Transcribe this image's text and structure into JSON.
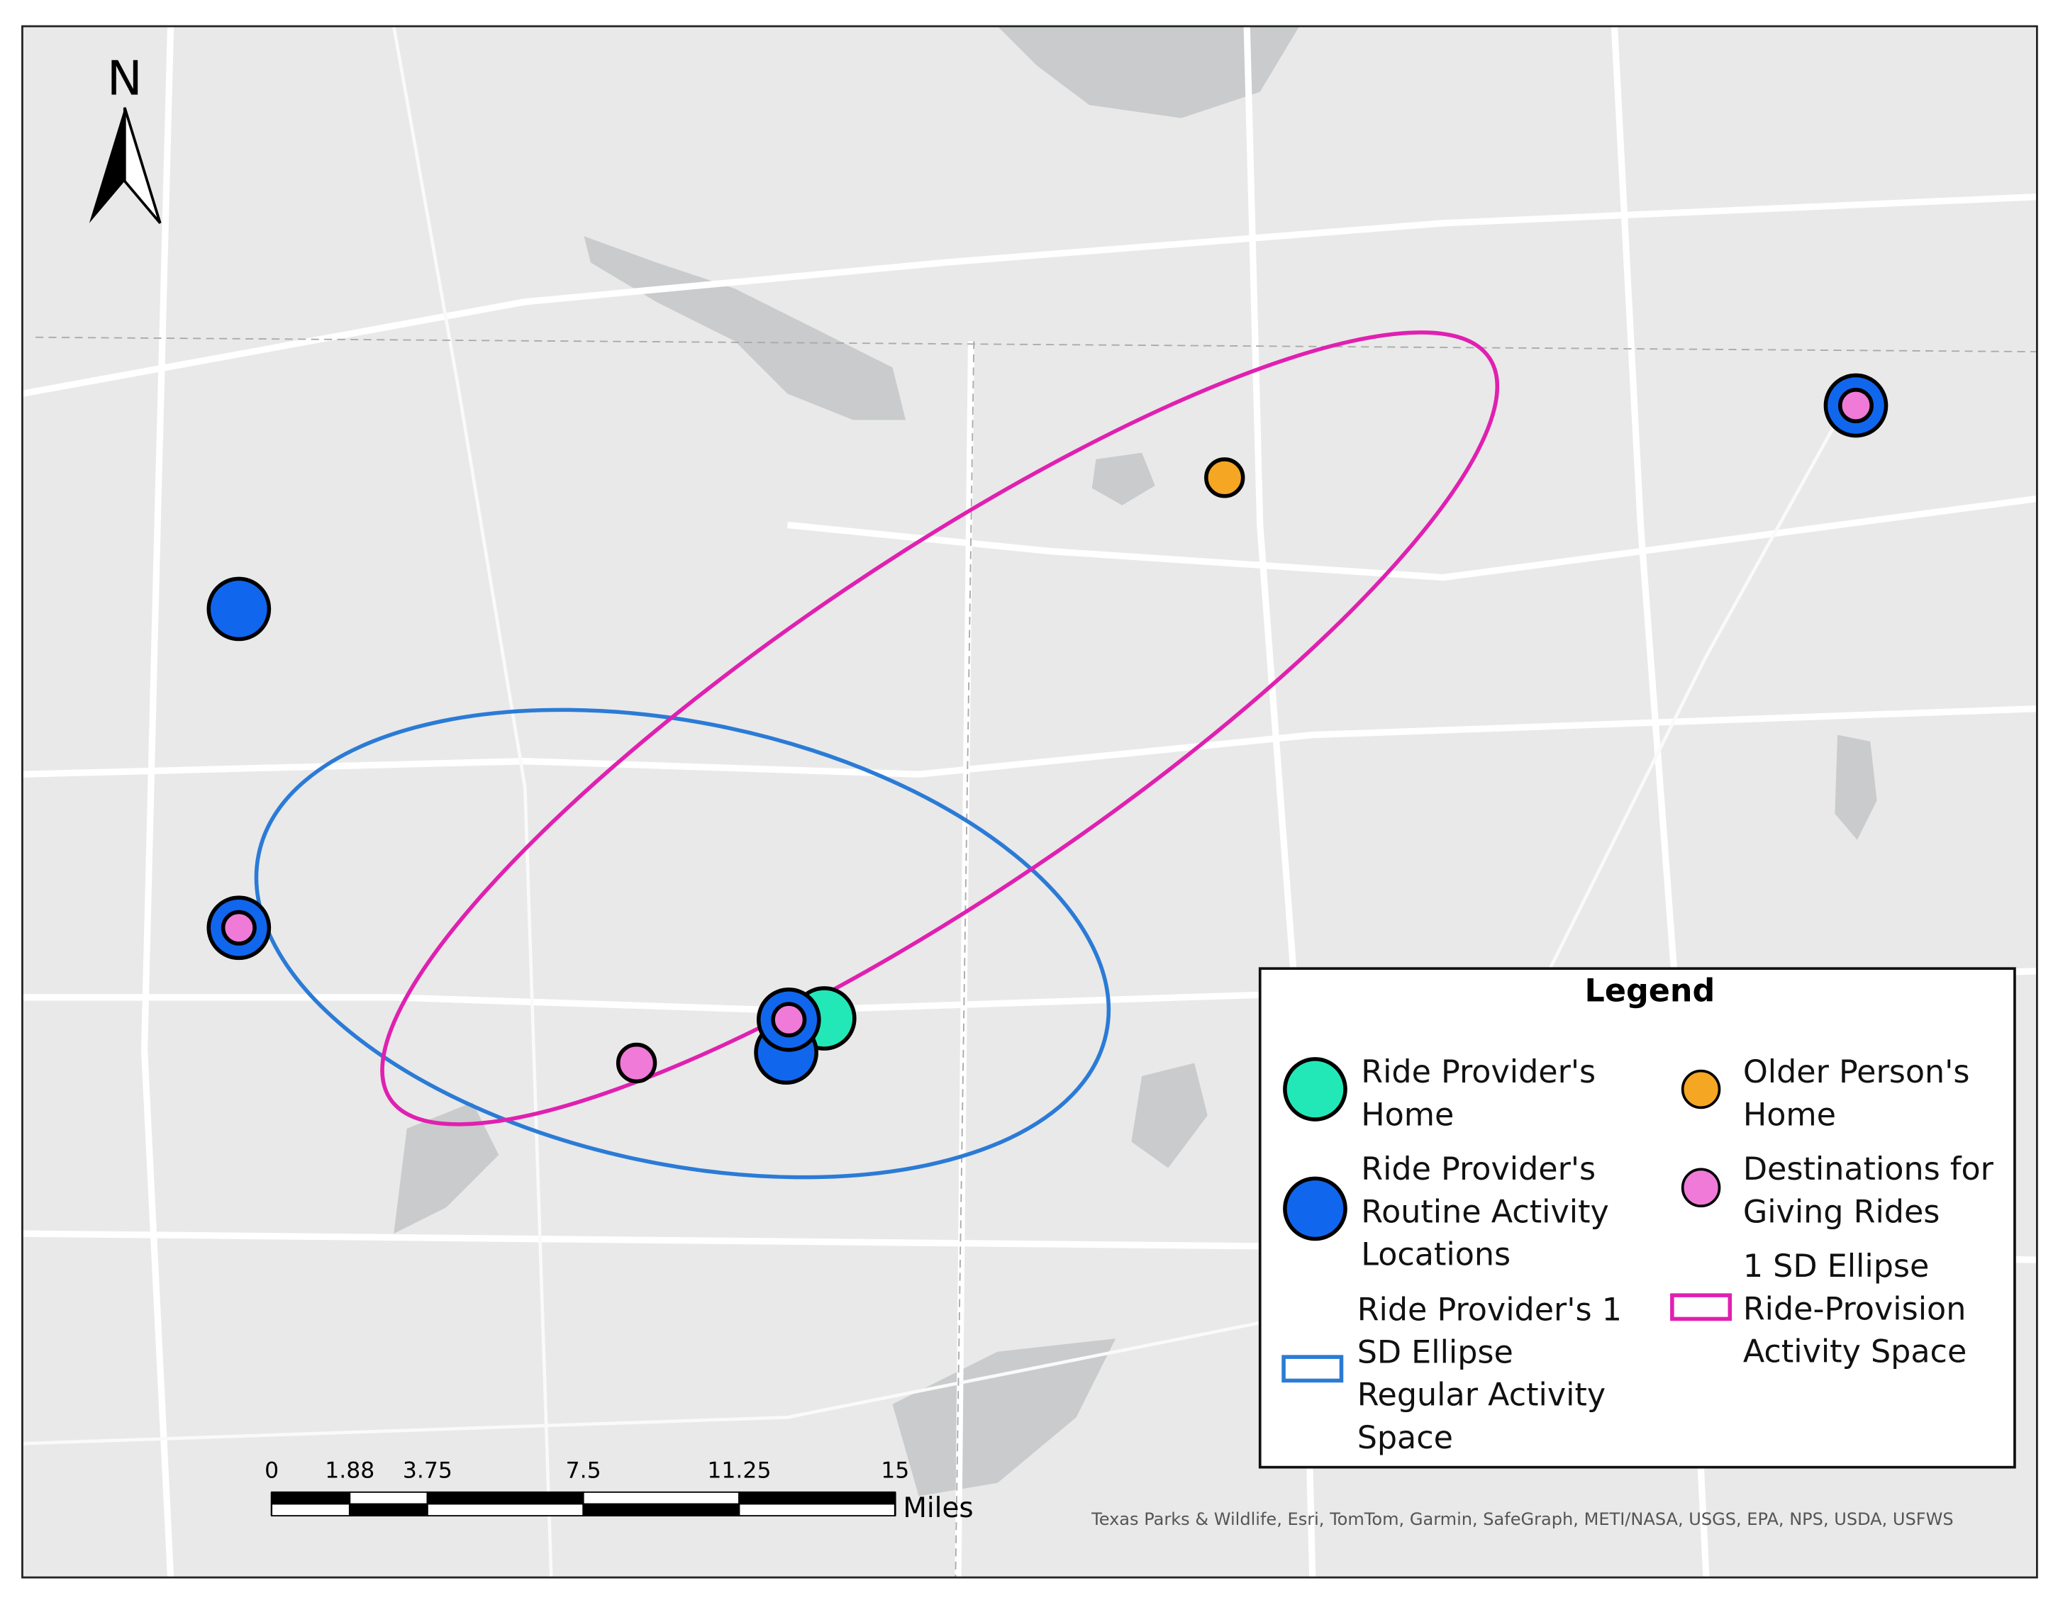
{
  "map": {
    "north_label": "N",
    "legend": {
      "title": "Legend",
      "items": [
        {
          "lines": [
            "Ride Provider's",
            "Home"
          ]
        },
        {
          "lines": [
            "Older Person's",
            "Home"
          ]
        },
        {
          "lines": [
            "Ride Provider's",
            "Routine Activity",
            "Locations"
          ]
        },
        {
          "lines": [
            "Destinations for",
            "Giving Rides"
          ]
        },
        {
          "lines": [
            "Ride Provider's 1",
            "SD Ellipse",
            "Regular Activity",
            "Space"
          ]
        },
        {
          "lines": [
            "1 SD Ellipse",
            "Ride-Provision",
            "Activity Space"
          ]
        }
      ]
    },
    "scale_bar": {
      "ticks": [
        0,
        1.88,
        3.75,
        7.5,
        11.25,
        15
      ],
      "unit": "Miles"
    },
    "attribution": "Texas Parks & Wildlife, Esri, TomTom, Garmin, SafeGraph, METI/NASA, USGS, EPA, NPS, USDA, USFWS"
  }
}
